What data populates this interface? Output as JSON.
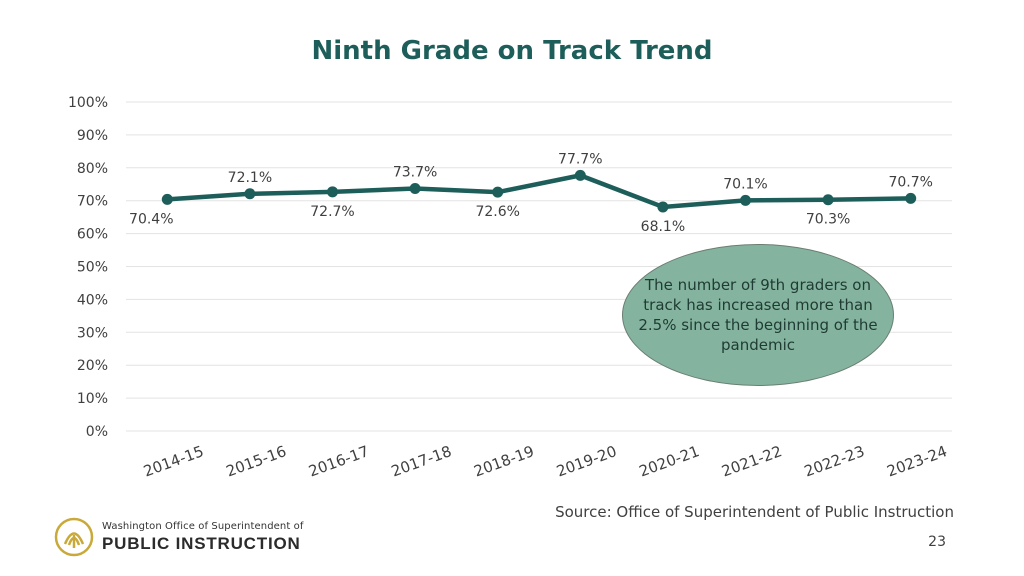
{
  "chart_data": {
    "type": "line",
    "title": "Ninth Grade on Track Trend",
    "categories": [
      "2014-15",
      "2015-16",
      "2016-17",
      "2017-18",
      "2018-19",
      "2019-20",
      "2020-21",
      "2021-22",
      "2022-23",
      "2023-24"
    ],
    "values": [
      70.4,
      72.1,
      72.7,
      73.7,
      72.6,
      77.7,
      68.1,
      70.1,
      70.3,
      70.7
    ],
    "data_labels": [
      "70.4%",
      "72.1%",
      "72.7%",
      "73.7%",
      "72.6%",
      "77.7%",
      "68.1%",
      "70.1%",
      "70.3%",
      "70.7%"
    ],
    "label_positions": [
      "below",
      "above",
      "below",
      "above",
      "below",
      "above",
      "below",
      "above",
      "below",
      "above"
    ],
    "ylim": [
      0,
      100
    ],
    "yticks": [
      "0%",
      "10%",
      "20%",
      "30%",
      "40%",
      "50%",
      "60%",
      "70%",
      "80%",
      "90%",
      "100%"
    ],
    "grid": true,
    "series_color": "#1d5e5a",
    "xlabel": "",
    "ylabel": ""
  },
  "callout": {
    "text": "The number of 9th graders on track has increased more than 2.5% since the beginning of the pandemic"
  },
  "footer": {
    "source": "Source: Office of Superintendent of Public Instruction",
    "page_number": "23",
    "logo_line1": "Washington Office of Superintendent of",
    "logo_line2": "PUBLIC INSTRUCTION"
  },
  "colors": {
    "title": "#1d5e5a",
    "callout_fill": "#84b49f",
    "logo_gold": "#c9a93a"
  }
}
